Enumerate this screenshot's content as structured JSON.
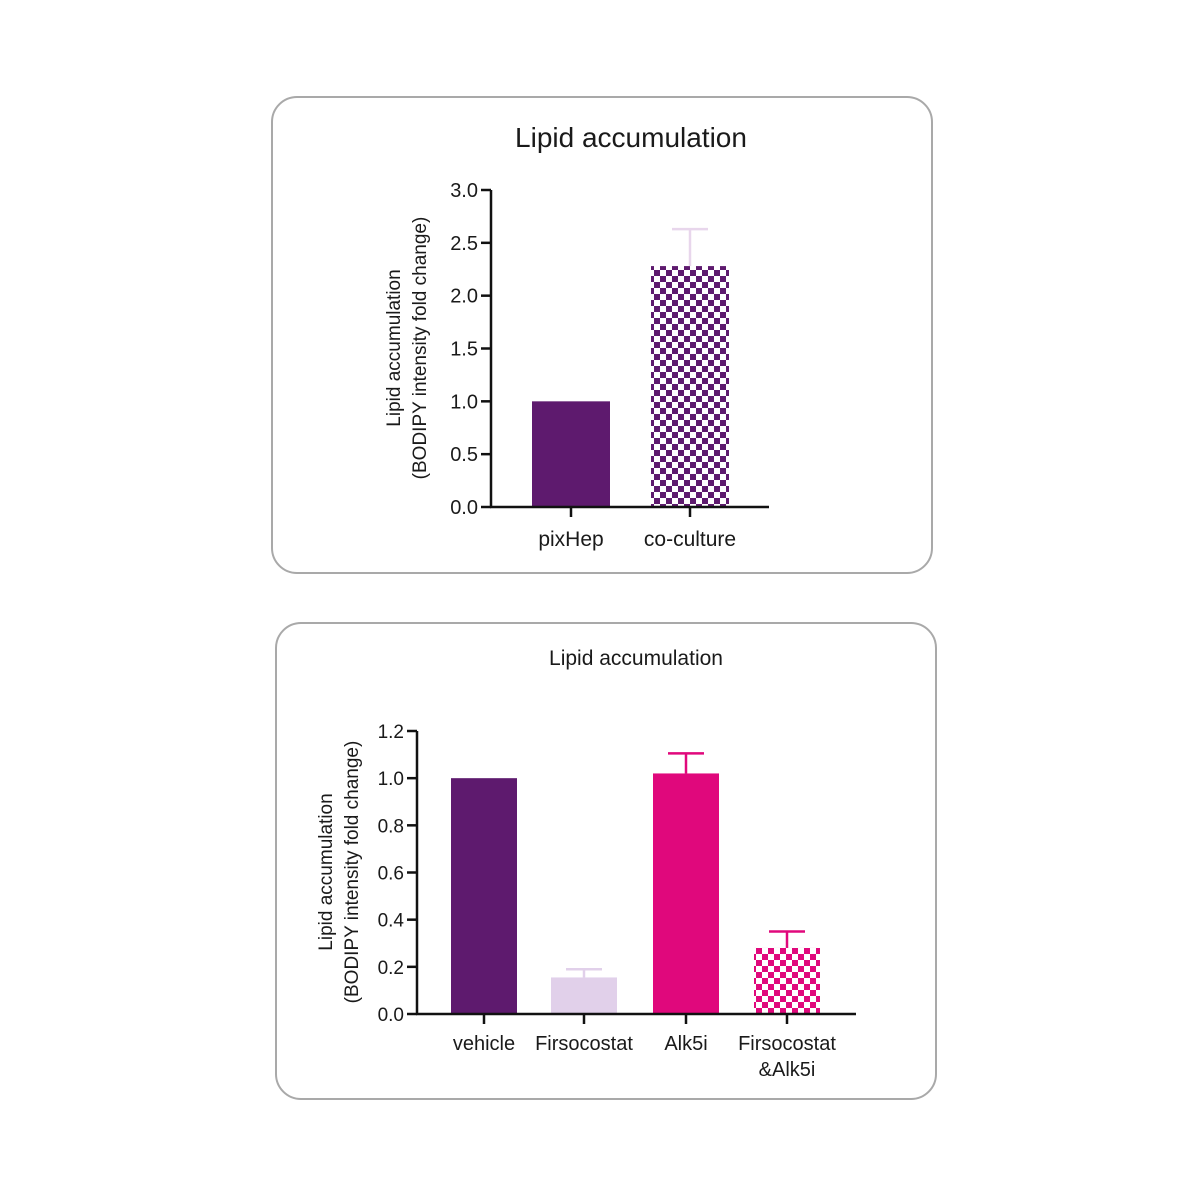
{
  "chart_data": [
    {
      "type": "bar",
      "title": "Lipid accumulation",
      "ylabel_lines": [
        "Lipid accumulation",
        "(BODIPY intensity fold change)"
      ],
      "ylim": [
        0,
        3.0
      ],
      "yticks": [
        "0.0",
        "0.5",
        "1.0",
        "1.5",
        "2.0",
        "2.5",
        "3.0"
      ],
      "categories": [
        [
          "pixHep"
        ],
        [
          "co-culture"
        ]
      ],
      "values": [
        1.0,
        2.28
      ],
      "errors": [
        0,
        0.35
      ],
      "colors": [
        "#5e1a6e",
        "#5e1a6e"
      ],
      "patterns": [
        "solid",
        "checker"
      ],
      "error_colors": [
        "#5e1a6e",
        "#e8d6ec"
      ]
    },
    {
      "type": "bar",
      "title": "Lipid accumulation",
      "ylabel_lines": [
        "Lipid accumulation",
        "(BODIPY intensity fold change)"
      ],
      "ylim": [
        0,
        1.2
      ],
      "yticks": [
        "0.0",
        "0.2",
        "0.4",
        "0.6",
        "0.8",
        "1.0",
        "1.2"
      ],
      "categories": [
        [
          "vehicle"
        ],
        [
          "Firsocostat"
        ],
        [
          "Alk5i"
        ],
        [
          "Firsocostat",
          "&Alk5i"
        ]
      ],
      "values": [
        1.0,
        0.155,
        1.02,
        0.28
      ],
      "errors": [
        0,
        0.035,
        0.085,
        0.07
      ],
      "colors": [
        "#5e1a6e",
        "#e1d0ea",
        "#e0087c",
        "#e0087c"
      ],
      "patterns": [
        "solid",
        "solid",
        "solid",
        "checker"
      ],
      "error_colors": [
        "#5e1a6e",
        "#e1d0ea",
        "#e0087c",
        "#e0087c"
      ]
    }
  ]
}
